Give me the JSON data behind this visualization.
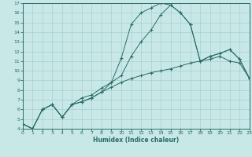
{
  "xlabel": "Humidex (Indice chaleur)",
  "bg_color": "#c8e8e8",
  "line_color": "#2a6b65",
  "grid_color": "#a0c8c8",
  "xlim": [
    0,
    23
  ],
  "ylim": [
    4,
    17
  ],
  "xticks": [
    0,
    1,
    2,
    3,
    4,
    5,
    6,
    7,
    8,
    9,
    10,
    11,
    12,
    13,
    14,
    15,
    16,
    17,
    18,
    19,
    20,
    21,
    22,
    23
  ],
  "yticks": [
    4,
    5,
    6,
    7,
    8,
    9,
    10,
    11,
    12,
    13,
    14,
    15,
    16,
    17
  ],
  "line_slow_x": [
    0,
    1,
    2,
    3,
    4,
    5,
    6,
    7,
    8,
    9,
    10,
    11,
    12,
    13,
    14,
    15,
    16,
    17,
    18,
    19,
    20,
    21,
    22,
    23
  ],
  "line_slow_y": [
    4.5,
    4.0,
    6.0,
    6.5,
    5.2,
    6.5,
    6.8,
    7.2,
    7.8,
    8.3,
    8.8,
    9.2,
    9.5,
    9.8,
    10.0,
    10.2,
    10.5,
    10.8,
    11.0,
    11.2,
    11.5,
    11.0,
    10.8,
    9.2
  ],
  "line_peak_x": [
    0,
    1,
    2,
    3,
    4,
    5,
    6,
    7,
    8,
    9,
    10,
    11,
    12,
    13,
    14,
    15,
    16,
    17,
    18,
    19,
    20,
    21,
    22,
    23
  ],
  "line_peak_y": [
    4.5,
    4.0,
    6.0,
    6.5,
    5.2,
    6.5,
    6.8,
    7.2,
    7.8,
    8.8,
    11.3,
    14.8,
    16.0,
    16.5,
    17.0,
    16.8,
    16.0,
    14.8,
    11.0,
    11.5,
    11.8,
    12.2,
    11.2,
    9.2
  ],
  "line_mid_x": [
    0,
    1,
    2,
    3,
    4,
    5,
    6,
    7,
    8,
    9,
    10,
    11,
    12,
    13,
    14,
    15,
    16,
    17,
    18,
    19,
    20,
    21,
    22,
    23
  ],
  "line_mid_y": [
    4.5,
    4.0,
    6.0,
    6.5,
    5.2,
    6.5,
    7.2,
    7.5,
    8.2,
    8.8,
    9.5,
    11.5,
    13.0,
    14.2,
    15.8,
    16.8,
    16.0,
    14.8,
    11.0,
    11.5,
    11.8,
    12.2,
    11.2,
    9.2
  ]
}
